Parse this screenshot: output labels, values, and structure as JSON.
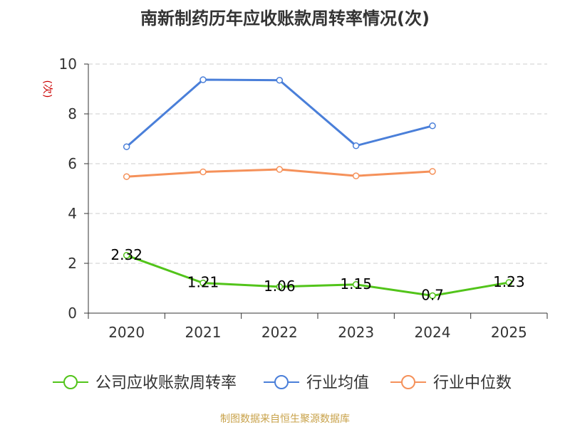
{
  "chart_data": {
    "type": "line",
    "title": "南新制药历年应收账款周转率情况(次)",
    "ylabel": "(次)",
    "xlabel": "",
    "categories": [
      "2020",
      "2021",
      "2022",
      "2023",
      "2024",
      "2025"
    ],
    "ylim": [
      0,
      10
    ],
    "yticks": [
      "0",
      "2",
      "4",
      "6",
      "8",
      "10"
    ],
    "grid": true,
    "legend_position": "bottom",
    "series": [
      {
        "name": "公司应收账款周转率",
        "color": "#52c41a",
        "values": [
          2.32,
          1.21,
          1.06,
          1.15,
          0.7,
          1.23
        ],
        "labels": [
          "2.32",
          "1.21",
          "1.06",
          "1.15",
          "0.7",
          "1.23"
        ]
      },
      {
        "name": "行业均值",
        "color": "#4a7fd9",
        "values": [
          6.68,
          9.37,
          9.35,
          6.72,
          7.52,
          null
        ]
      },
      {
        "name": "行业中位数",
        "color": "#f5915a",
        "values": [
          5.48,
          5.67,
          5.77,
          5.51,
          5.69,
          null
        ]
      }
    ]
  },
  "footer": {
    "source": "制图数据来自恒生聚源数据库",
    "source_color": "#c8a24a"
  },
  "colors": {
    "axis": "#333333",
    "grid": "#cccccc",
    "ylabel": "#cc0000"
  }
}
